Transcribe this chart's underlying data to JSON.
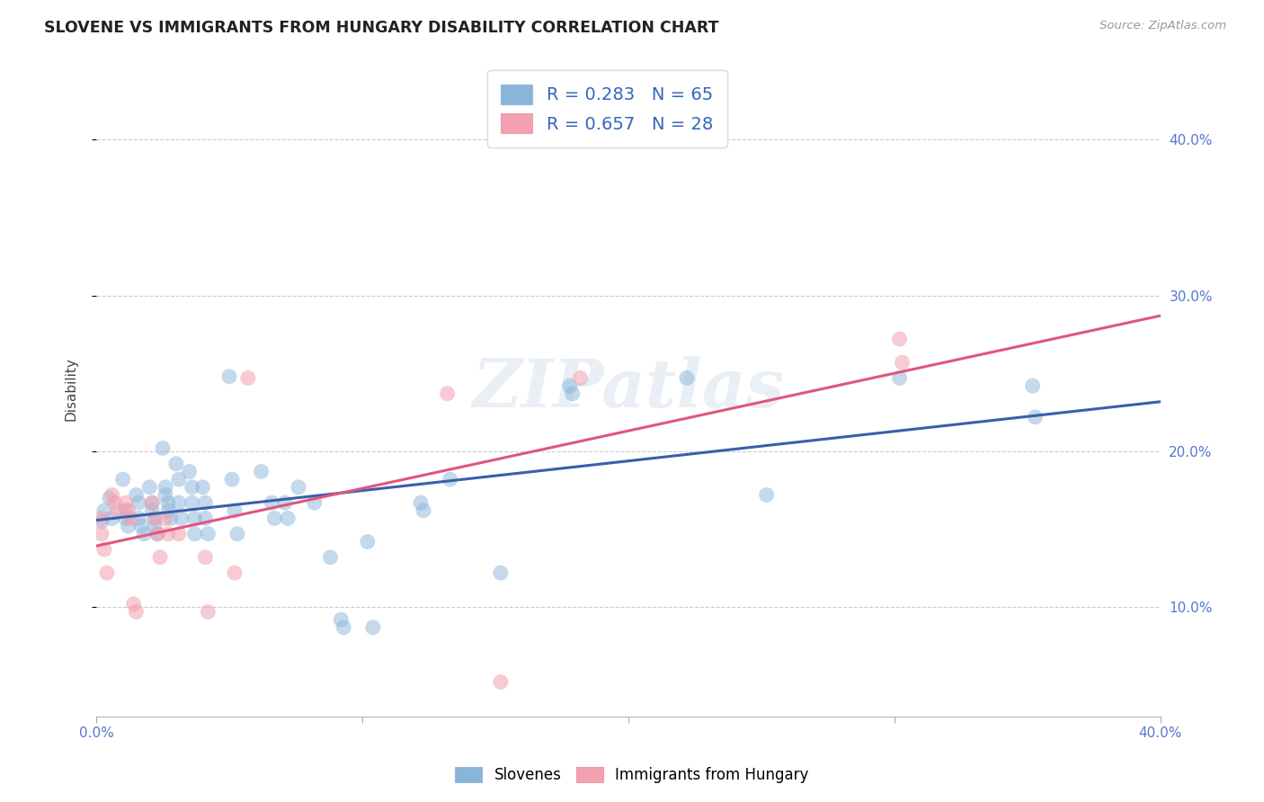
{
  "title": "SLOVENE VS IMMIGRANTS FROM HUNGARY DISABILITY CORRELATION CHART",
  "source": "Source: ZipAtlas.com",
  "ylabel": "Disability",
  "ytick_labels": [
    "10.0%",
    "20.0%",
    "30.0%",
    "40.0%"
  ],
  "ytick_values": [
    0.1,
    0.2,
    0.3,
    0.4
  ],
  "xlim": [
    0.0,
    0.4
  ],
  "ylim": [
    0.03,
    0.45
  ],
  "xtick_positions": [
    0.0,
    0.1,
    0.2,
    0.3,
    0.4
  ],
  "legend1_label": "R = 0.283   N = 65",
  "legend2_label": "R = 0.657   N = 28",
  "legend_bottom_label1": "Slovenes",
  "legend_bottom_label2": "Immigrants from Hungary",
  "blue_color": "#8ab4d9",
  "pink_color": "#f4a0b0",
  "blue_line_color": "#3a5faa",
  "pink_line_color": "#e05580",
  "watermark": "ZIPatlas",
  "slovene_points": [
    [
      0.002,
      0.155
    ],
    [
      0.003,
      0.162
    ],
    [
      0.005,
      0.17
    ],
    [
      0.006,
      0.157
    ],
    [
      0.01,
      0.182
    ],
    [
      0.011,
      0.162
    ],
    [
      0.011,
      0.157
    ],
    [
      0.012,
      0.152
    ],
    [
      0.015,
      0.172
    ],
    [
      0.016,
      0.167
    ],
    [
      0.016,
      0.157
    ],
    [
      0.017,
      0.152
    ],
    [
      0.018,
      0.147
    ],
    [
      0.02,
      0.177
    ],
    [
      0.021,
      0.167
    ],
    [
      0.021,
      0.162
    ],
    [
      0.022,
      0.157
    ],
    [
      0.022,
      0.152
    ],
    [
      0.023,
      0.147
    ],
    [
      0.025,
      0.202
    ],
    [
      0.026,
      0.177
    ],
    [
      0.026,
      0.172
    ],
    [
      0.027,
      0.167
    ],
    [
      0.027,
      0.162
    ],
    [
      0.028,
      0.157
    ],
    [
      0.03,
      0.192
    ],
    [
      0.031,
      0.182
    ],
    [
      0.031,
      0.167
    ],
    [
      0.032,
      0.157
    ],
    [
      0.035,
      0.187
    ],
    [
      0.036,
      0.177
    ],
    [
      0.036,
      0.167
    ],
    [
      0.037,
      0.157
    ],
    [
      0.037,
      0.147
    ],
    [
      0.04,
      0.177
    ],
    [
      0.041,
      0.167
    ],
    [
      0.041,
      0.157
    ],
    [
      0.042,
      0.147
    ],
    [
      0.05,
      0.248
    ],
    [
      0.051,
      0.182
    ],
    [
      0.052,
      0.162
    ],
    [
      0.053,
      0.147
    ],
    [
      0.062,
      0.187
    ],
    [
      0.066,
      0.167
    ],
    [
      0.067,
      0.157
    ],
    [
      0.071,
      0.167
    ],
    [
      0.072,
      0.157
    ],
    [
      0.076,
      0.177
    ],
    [
      0.082,
      0.167
    ],
    [
      0.088,
      0.132
    ],
    [
      0.092,
      0.092
    ],
    [
      0.093,
      0.087
    ],
    [
      0.102,
      0.142
    ],
    [
      0.104,
      0.087
    ],
    [
      0.122,
      0.167
    ],
    [
      0.123,
      0.162
    ],
    [
      0.133,
      0.182
    ],
    [
      0.152,
      0.122
    ],
    [
      0.178,
      0.242
    ],
    [
      0.179,
      0.237
    ],
    [
      0.222,
      0.247
    ],
    [
      0.252,
      0.172
    ],
    [
      0.302,
      0.247
    ],
    [
      0.352,
      0.242
    ],
    [
      0.353,
      0.222
    ]
  ],
  "hungary_points": [
    [
      0.002,
      0.157
    ],
    [
      0.002,
      0.147
    ],
    [
      0.003,
      0.137
    ],
    [
      0.004,
      0.122
    ],
    [
      0.006,
      0.172
    ],
    [
      0.007,
      0.167
    ],
    [
      0.008,
      0.162
    ],
    [
      0.011,
      0.167
    ],
    [
      0.012,
      0.162
    ],
    [
      0.013,
      0.157
    ],
    [
      0.014,
      0.102
    ],
    [
      0.015,
      0.097
    ],
    [
      0.021,
      0.167
    ],
    [
      0.022,
      0.157
    ],
    [
      0.023,
      0.147
    ],
    [
      0.024,
      0.132
    ],
    [
      0.026,
      0.157
    ],
    [
      0.027,
      0.147
    ],
    [
      0.031,
      0.147
    ],
    [
      0.041,
      0.132
    ],
    [
      0.042,
      0.097
    ],
    [
      0.052,
      0.122
    ],
    [
      0.057,
      0.247
    ],
    [
      0.132,
      0.237
    ],
    [
      0.152,
      0.052
    ],
    [
      0.182,
      0.247
    ],
    [
      0.302,
      0.272
    ],
    [
      0.303,
      0.257
    ]
  ]
}
